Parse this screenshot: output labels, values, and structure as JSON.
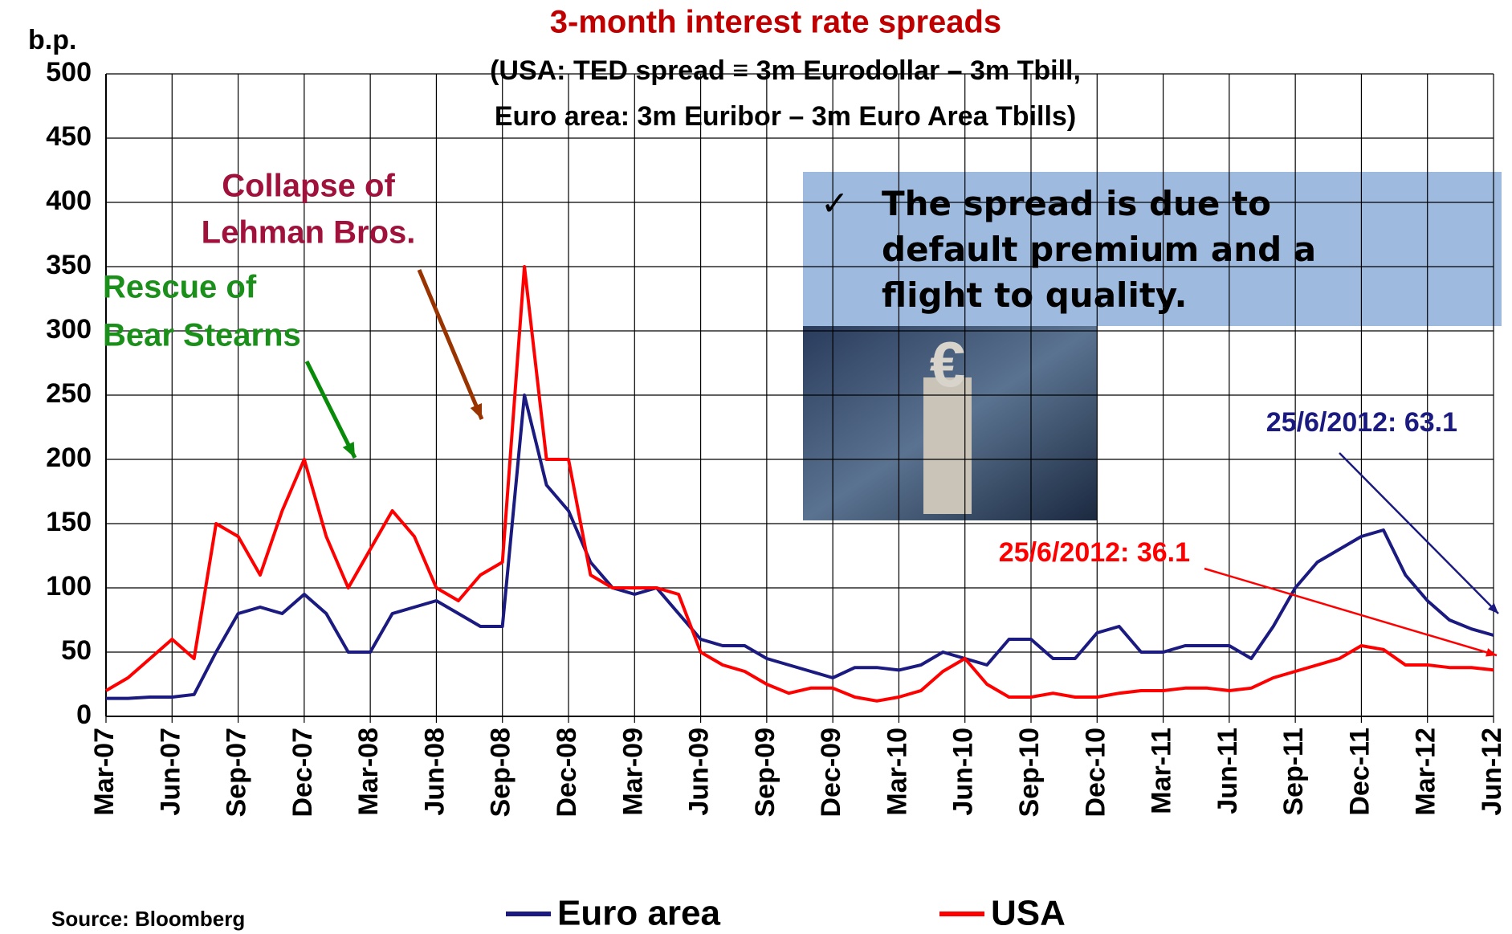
{
  "chart_data": {
    "type": "line",
    "title": "3-month interest rate spreads",
    "subtitle": [
      "(USA: TED spread ≡ 3m Eurodollar – 3m Tbill,",
      "Euro area: 3m Euribor – 3m Euro Area Tbills)"
    ],
    "y_label": "b.p.",
    "source": "Source: Bloomberg",
    "x": [
      "2007-03",
      "2007-04",
      "2007-05",
      "2007-06",
      "2007-07",
      "2007-08",
      "2007-09",
      "2007-10",
      "2007-11",
      "2007-12",
      "2008-01",
      "2008-02",
      "2008-03",
      "2008-04",
      "2008-05",
      "2008-06",
      "2008-07",
      "2008-08",
      "2008-09",
      "2008-10",
      "2008-11",
      "2008-12",
      "2009-01",
      "2009-02",
      "2009-03",
      "2009-04",
      "2009-05",
      "2009-06",
      "2009-07",
      "2009-08",
      "2009-09",
      "2009-10",
      "2009-11",
      "2009-12",
      "2010-01",
      "2010-02",
      "2010-03",
      "2010-04",
      "2010-05",
      "2010-06",
      "2010-07",
      "2010-08",
      "2010-09",
      "2010-10",
      "2010-11",
      "2010-12",
      "2011-01",
      "2011-02",
      "2011-03",
      "2011-04",
      "2011-05",
      "2011-06",
      "2011-07",
      "2011-08",
      "2011-09",
      "2011-10",
      "2011-11",
      "2011-12",
      "2012-01",
      "2012-02",
      "2012-03",
      "2012-04",
      "2012-05",
      "2012-06"
    ],
    "series": [
      {
        "name": "Euro area",
        "color": "#1a1a80",
        "values": [
          14,
          14,
          15,
          15,
          17,
          50,
          80,
          85,
          80,
          95,
          80,
          50,
          50,
          80,
          85,
          90,
          80,
          70,
          70,
          250,
          180,
          160,
          120,
          100,
          95,
          100,
          80,
          60,
          55,
          55,
          45,
          40,
          35,
          30,
          38,
          38,
          36,
          40,
          50,
          45,
          40,
          60,
          60,
          45,
          45,
          65,
          70,
          50,
          50,
          55,
          55,
          55,
          45,
          70,
          100,
          120,
          130,
          140,
          145,
          110,
          90,
          75,
          68,
          63.1
        ]
      },
      {
        "name": "USA",
        "color": "#ff0000",
        "values": [
          20,
          30,
          45,
          60,
          45,
          150,
          140,
          110,
          160,
          200,
          140,
          100,
          130,
          160,
          140,
          100,
          90,
          110,
          120,
          350,
          200,
          200,
          110,
          100,
          100,
          100,
          95,
          50,
          40,
          35,
          25,
          18,
          22,
          22,
          15,
          12,
          15,
          20,
          35,
          45,
          25,
          15,
          15,
          18,
          15,
          15,
          18,
          20,
          20,
          22,
          22,
          20,
          22,
          30,
          35,
          40,
          45,
          55,
          52,
          40,
          40,
          38,
          38,
          36.1
        ]
      }
    ],
    "ylim": [
      0,
      500
    ],
    "yticks": [
      0,
      50,
      100,
      150,
      200,
      250,
      300,
      350,
      400,
      450,
      500
    ],
    "xlim": [
      "2007-03",
      "2012-06"
    ],
    "xticks": [
      {
        "value": "2007-03",
        "label": "Mar-07"
      },
      {
        "value": "2007-06",
        "label": "Jun-07"
      },
      {
        "value": "2007-09",
        "label": "Sep-07"
      },
      {
        "value": "2007-12",
        "label": "Dec-07"
      },
      {
        "value": "2008-03",
        "label": "Mar-08"
      },
      {
        "value": "2008-06",
        "label": "Jun-08"
      },
      {
        "value": "2008-09",
        "label": "Sep-08"
      },
      {
        "value": "2008-12",
        "label": "Dec-08"
      },
      {
        "value": "2009-03",
        "label": "Mar-09"
      },
      {
        "value": "2009-06",
        "label": "Jun-09"
      },
      {
        "value": "2009-09",
        "label": "Sep-09"
      },
      {
        "value": "2009-12",
        "label": "Dec-09"
      },
      {
        "value": "2010-03",
        "label": "Mar-10"
      },
      {
        "value": "2010-06",
        "label": "Jun-10"
      },
      {
        "value": "2010-09",
        "label": "Sep-10"
      },
      {
        "value": "2010-12",
        "label": "Dec-10"
      },
      {
        "value": "2011-03",
        "label": "Mar-11"
      },
      {
        "value": "2011-06",
        "label": "Jun-11"
      },
      {
        "value": "2011-09",
        "label": "Sep-11"
      },
      {
        "value": "2011-12",
        "label": "Dec-11"
      },
      {
        "value": "2012-03",
        "label": "Mar-12"
      },
      {
        "value": "2012-06",
        "label": "Jun-12"
      }
    ],
    "grid": true,
    "legend": "bottom",
    "annotations": [
      {
        "lines": [
          "Collapse of",
          "Lehman Bros."
        ],
        "color": "#a0123c"
      },
      {
        "lines": [
          "Rescue of",
          "Bear Stearns"
        ],
        "color": "#1a8f1a"
      },
      {
        "lines": [
          "25/6/2012: 63.1"
        ],
        "color": "#1a1a80"
      },
      {
        "lines": [
          "25/6/2012: 36.1"
        ],
        "color": "#ff0000"
      }
    ],
    "note": "The spread is due to default premium and a flight to quality."
  }
}
